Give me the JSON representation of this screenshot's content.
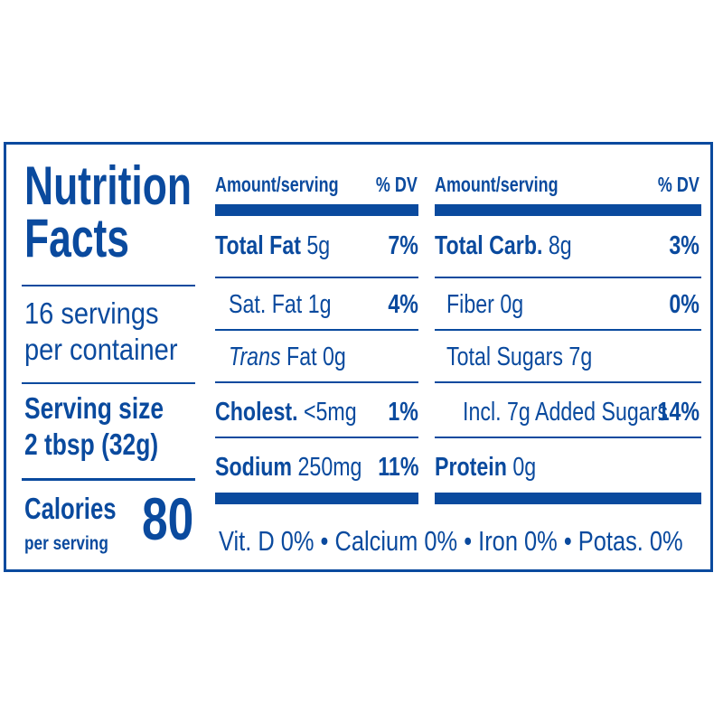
{
  "title": {
    "line1": "Nutrition",
    "line2": "Facts"
  },
  "servings": {
    "line1": "16 servings",
    "line2": "per container"
  },
  "serving_size": {
    "line1": "Serving size",
    "line2": "2 tbsp (32g)"
  },
  "calories": {
    "label": "Calories",
    "sub": "per serving",
    "value": "80"
  },
  "headers": {
    "amount": "Amount/serving",
    "dv": "% DV"
  },
  "left_nutrients": [
    {
      "name": "Total Fat",
      "amount": "5g",
      "dv": "7%"
    },
    {
      "name": "Sat. Fat",
      "amount": "1g",
      "dv": "4%"
    },
    {
      "name_italic": "Trans",
      "name": "Fat",
      "amount": "0g",
      "dv": ""
    },
    {
      "name": "Cholest.",
      "amount": "<5mg",
      "dv": "1%"
    },
    {
      "name": "Sodium",
      "amount": "250mg",
      "dv": "11%"
    }
  ],
  "right_nutrients": [
    {
      "name": "Total Carb.",
      "amount": "8g",
      "dv": "3%"
    },
    {
      "name": "Fiber",
      "amount": "0g",
      "dv": "0%"
    },
    {
      "name": "Total Sugars",
      "amount": "7g",
      "dv": ""
    },
    {
      "name": "Incl. 7g Added Sugars",
      "amount": "",
      "dv": "14%"
    },
    {
      "name": "Protein",
      "amount": "0g",
      "dv": ""
    }
  ],
  "vitamins": "Vit. D 0% • Calcium 0% • Iron 0% • Potas. 0%",
  "colors": {
    "ink": "#0a4a9e",
    "background": "#ffffff"
  }
}
